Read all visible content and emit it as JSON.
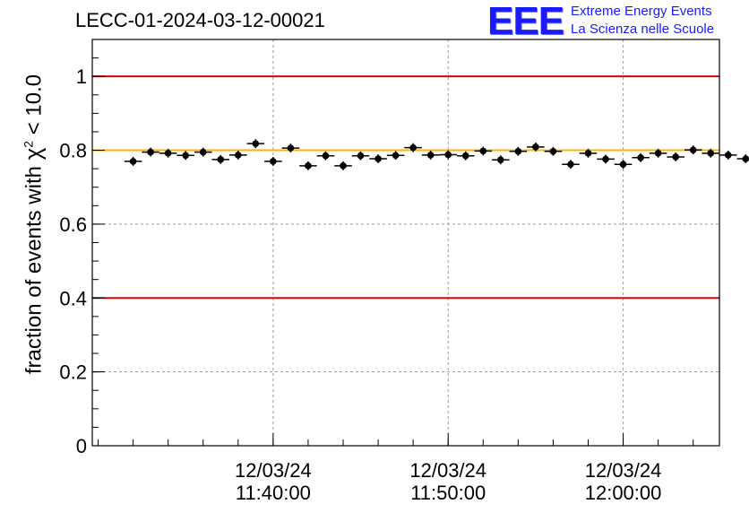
{
  "header": {
    "title": "LECC-01-2024-03-12-00021",
    "logo_text": "EEE",
    "logo_line1": "Extreme Energy Events",
    "logo_line2": "La Scienza nelle Scuole"
  },
  "colors": {
    "threshold_lines": "#dd0000",
    "reference_line": "#ffb300",
    "markers": "#000000",
    "grid": "#9a9a9a",
    "logo": "#1a1aff"
  },
  "chart_data": {
    "type": "scatter",
    "title": "LECC-01-2024-03-12-00021",
    "xlabel": "",
    "ylabel_parts": [
      "fraction of events with ",
      "χ",
      "2",
      " < 10.0"
    ],
    "x_is_time": true,
    "x_start": "11:32:00",
    "x_step_minutes": 1,
    "xlim": [
      "11:29:40",
      "12:05:30"
    ],
    "ylim": [
      0,
      1.1
    ],
    "x_ticks": [
      {
        "time": "11:40:00",
        "date": "12/03/24",
        "label_time": "11:40:00"
      },
      {
        "time": "11:50:00",
        "date": "12/03/24",
        "label_time": "11:50:00"
      },
      {
        "time": "12:00:00",
        "date": "12/03/24",
        "label_time": "12:00:00"
      }
    ],
    "y_ticks": [
      {
        "value": 0,
        "label": "0"
      },
      {
        "value": 0.2,
        "label": "0.2"
      },
      {
        "value": 0.4,
        "label": "0.4"
      },
      {
        "value": 0.6,
        "label": "0.6"
      },
      {
        "value": 0.8,
        "label": "0.8"
      },
      {
        "value": 1,
        "label": "1"
      }
    ],
    "grid": true,
    "reference_lines": [
      {
        "y": 1.0,
        "color": "#dd0000"
      },
      {
        "y": 0.4,
        "color": "#dd0000"
      },
      {
        "y": 0.8,
        "color": "#ffb300"
      }
    ],
    "series": [
      {
        "values": [
          0.77,
          0.795,
          0.792,
          0.786,
          0.795,
          0.775,
          0.787,
          0.818,
          0.77,
          0.806,
          0.758,
          0.785,
          0.758,
          0.785,
          0.777,
          0.786,
          0.807,
          0.787,
          0.788,
          0.785,
          0.798,
          0.774,
          0.797,
          0.809,
          0.797,
          0.762,
          0.792,
          0.776,
          0.762,
          0.78,
          0.792,
          0.782,
          0.801,
          0.792,
          0.787,
          0.777
        ],
        "x_error_minutes": 0.5,
        "y_error": 0.012
      }
    ]
  }
}
